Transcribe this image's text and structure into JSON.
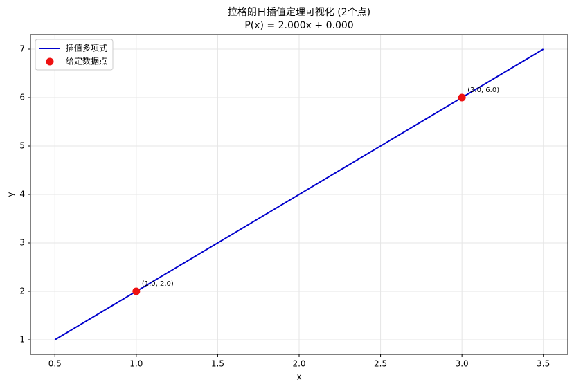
{
  "chart_data": {
    "type": "line",
    "title": "拉格朗日插值定理可视化 (2个点)",
    "subtitle": "P(x) = 2.000x + 0.000",
    "x_label": "x",
    "y_label": "y",
    "series": [
      {
        "name": "插值多项式",
        "color": "#0000cc",
        "style": "line",
        "x": [
          0.5,
          3.5
        ],
        "values": [
          1,
          7
        ]
      },
      {
        "name": "给定数据点",
        "color": "#ee1111",
        "style": "marker",
        "x": [
          1,
          3
        ],
        "values": [
          2,
          6
        ],
        "value_labels": [
          "(1.0, 2.0)",
          "(3.0, 6.0)"
        ]
      }
    ],
    "xlim": [
      0.35,
      3.65
    ],
    "xticks": [
      {
        "value": 0.5,
        "label": "0.5"
      },
      {
        "value": 1,
        "label": "1.0"
      },
      {
        "value": 1.5,
        "label": "1.5"
      },
      {
        "value": 2,
        "label": "2.0"
      },
      {
        "value": 2.5,
        "label": "2.5"
      },
      {
        "value": 3,
        "label": "3.0"
      },
      {
        "value": 3.5,
        "label": "3.5"
      }
    ],
    "ylim": [
      0.7,
      7.3
    ],
    "yticks": [
      1,
      2,
      3,
      4,
      5,
      6,
      7
    ],
    "grid": true,
    "legend": "upper-left"
  }
}
